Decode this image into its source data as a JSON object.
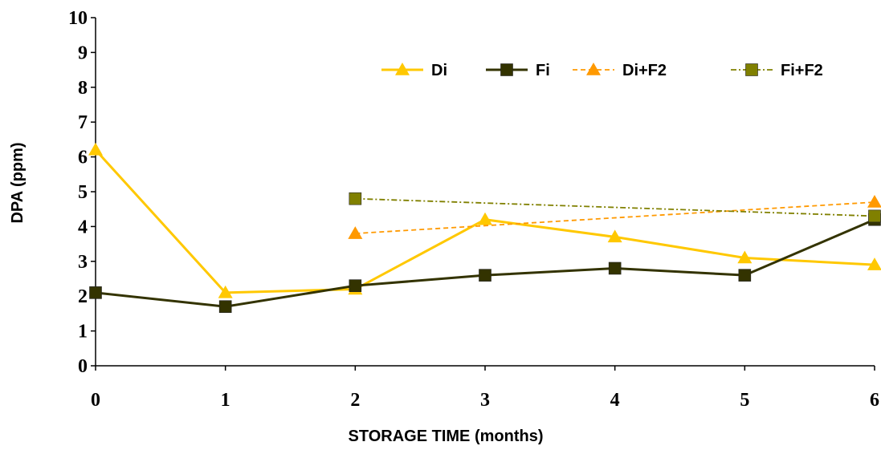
{
  "chart_data": {
    "type": "line",
    "title": "",
    "xlabel": "STORAGE TIME (months)",
    "ylabel": "DPA (ppm)",
    "xlim": [
      0,
      6
    ],
    "ylim": [
      0,
      10
    ],
    "x_ticks": [
      "0",
      "1",
      "2",
      "3",
      "4",
      "5",
      "6"
    ],
    "y_ticks": [
      "0",
      "1",
      "2",
      "3",
      "4",
      "5",
      "6",
      "7",
      "8",
      "9",
      "10"
    ],
    "grid": false,
    "legend_position": "top-right",
    "series": [
      {
        "name": "Di",
        "color": "#FFC800",
        "marker": "triangle",
        "line_style": "solid",
        "points": [
          [
            0,
            6.2
          ],
          [
            1,
            2.1
          ],
          [
            2,
            2.2
          ],
          [
            3,
            4.2
          ],
          [
            4,
            3.7
          ],
          [
            5,
            3.1
          ],
          [
            6,
            2.9
          ]
        ]
      },
      {
        "name": "Fi",
        "color": "#333300",
        "marker": "square",
        "line_style": "solid",
        "points": [
          [
            0,
            2.1
          ],
          [
            1,
            1.7
          ],
          [
            2,
            2.3
          ],
          [
            3,
            2.6
          ],
          [
            4,
            2.8
          ],
          [
            5,
            2.6
          ],
          [
            6,
            4.2
          ]
        ]
      },
      {
        "name": "Di+F2",
        "color": "#FF9900",
        "marker": "triangle",
        "line_style": "dashed",
        "points": [
          [
            2,
            3.8
          ],
          [
            6,
            4.7
          ]
        ]
      },
      {
        "name": "Fi+F2",
        "color": "#808000",
        "marker": "square",
        "line_style": "dash-dot",
        "points": [
          [
            2,
            4.8
          ],
          [
            6,
            4.3
          ]
        ]
      }
    ]
  }
}
